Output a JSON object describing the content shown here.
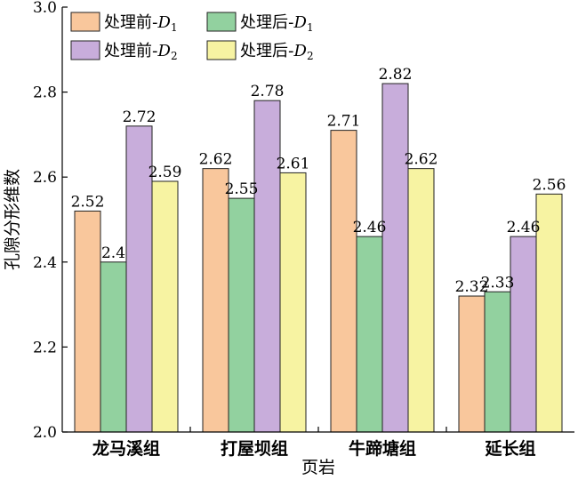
{
  "chart_data": {
    "type": "bar",
    "xlabel": "页岩",
    "ylabel": "孔隙分形维数",
    "ylim": [
      2.0,
      3.0
    ],
    "yticks": [
      "2.0",
      "2.2",
      "2.4",
      "2.6",
      "2.8",
      "3.0"
    ],
    "categories": [
      "龙马溪组",
      "打屋坝组",
      "牛蹄塘组",
      "延长组"
    ],
    "series": [
      {
        "name": "处理前-D1",
        "name_main": "处理前-",
        "name_var": "D",
        "name_sub": "1",
        "color": "#f9c79c",
        "values": [
          2.52,
          2.62,
          2.71,
          2.32
        ],
        "labels": [
          "2.52",
          "2.62",
          "2.71",
          "2.32"
        ]
      },
      {
        "name": "处理后-D1",
        "name_main": "处理后-",
        "name_var": "D",
        "name_sub": "1",
        "color": "#92d19f",
        "values": [
          2.4,
          2.55,
          2.46,
          2.33
        ],
        "labels": [
          "2.4",
          "2.55",
          "2.46",
          "2.33"
        ]
      },
      {
        "name": "处理前-D2",
        "name_main": "处理前-",
        "name_var": "D",
        "name_sub": "2",
        "color": "#c8addb",
        "values": [
          2.72,
          2.78,
          2.82,
          2.46
        ],
        "labels": [
          "2.72",
          "2.78",
          "2.82",
          "2.46"
        ]
      },
      {
        "name": "处理后-D2",
        "name_main": "处理后-",
        "name_var": "D",
        "name_sub": "2",
        "color": "#f7f3a2",
        "values": [
          2.59,
          2.61,
          2.62,
          2.56
        ],
        "labels": [
          "2.59",
          "2.61",
          "2.62",
          "2.56"
        ]
      }
    ],
    "legend": "top-left, 2 columns",
    "grid": false
  }
}
